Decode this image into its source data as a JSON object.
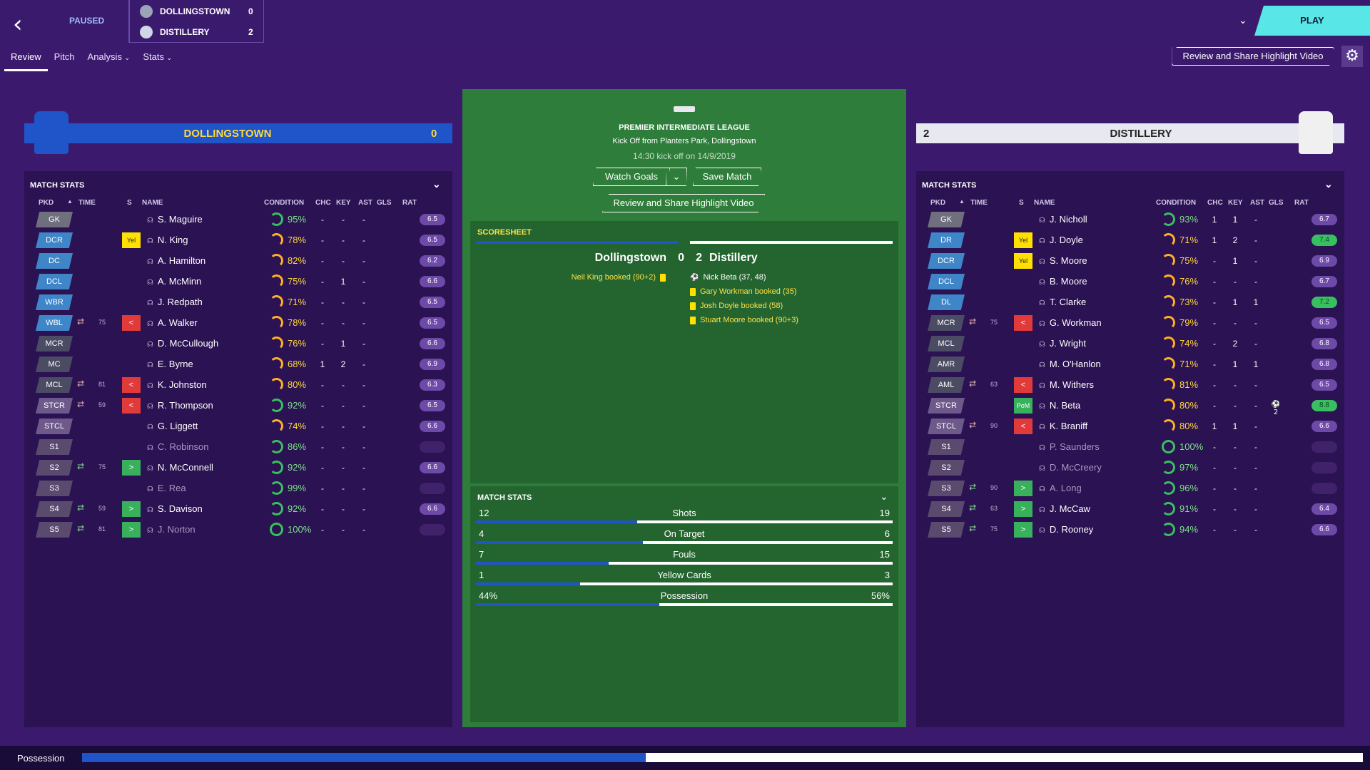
{
  "header": {
    "back_icon": "back-arrow-icon",
    "status": "PAUSED",
    "home_team": "DOLLINGSTOWN",
    "home_score": "0",
    "away_team": "DISTILLERY",
    "away_score": "2"
  },
  "tabs": [
    {
      "label": "Review"
    },
    {
      "label": "Pitch"
    },
    {
      "label": "Analysis"
    },
    {
      "label": "Stats"
    }
  ],
  "play_label": "PLAY",
  "share_label": "Review and Share Highlight Video",
  "home": {
    "name": "DOLLINGSTOWN",
    "score": "0",
    "stats_title": "MATCH STATS",
    "columns": [
      "PKD",
      "TIME",
      "S",
      "NAME",
      "CONDITION",
      "CHC",
      "KEY",
      "AST",
      "GLS",
      "RAT"
    ],
    "players": [
      {
        "pos": "GK",
        "name": "S. Maguire",
        "cond": "95%",
        "chc": "-",
        "key": "-",
        "ast": "-",
        "gls": "",
        "rat": "6.5"
      },
      {
        "pos": "DCR",
        "name": "N. King",
        "cond": "78%",
        "chc": "-",
        "key": "-",
        "ast": "-",
        "gls": "",
        "rat": "6.5",
        "s": "Yel"
      },
      {
        "pos": "DC",
        "name": "A. Hamilton",
        "cond": "82%",
        "chc": "-",
        "key": "-",
        "ast": "-",
        "gls": "",
        "rat": "6.2"
      },
      {
        "pos": "DCL",
        "name": "A. McMinn",
        "cond": "75%",
        "chc": "-",
        "key": "1",
        "ast": "-",
        "gls": "",
        "rat": "6.6"
      },
      {
        "pos": "WBR",
        "name": "J. Redpath",
        "cond": "71%",
        "chc": "-",
        "key": "-",
        "ast": "-",
        "gls": "",
        "rat": "6.5"
      },
      {
        "pos": "WBL",
        "name": "A. Walker",
        "cond": "78%",
        "chc": "-",
        "key": "-",
        "ast": "-",
        "gls": "",
        "rat": "6.5",
        "time": "75",
        "s": "<"
      },
      {
        "pos": "MCR",
        "name": "D. McCullough",
        "cond": "76%",
        "chc": "-",
        "key": "1",
        "ast": "-",
        "gls": "",
        "rat": "6.6"
      },
      {
        "pos": "MC",
        "name": "E. Byrne",
        "cond": "68%",
        "chc": "1",
        "key": "2",
        "ast": "-",
        "gls": "",
        "rat": "6.9"
      },
      {
        "pos": "MCL",
        "name": "K. Johnston",
        "cond": "80%",
        "chc": "-",
        "key": "-",
        "ast": "-",
        "gls": "",
        "rat": "6.3",
        "time": "81",
        "s": "<"
      },
      {
        "pos": "STCR",
        "name": "R. Thompson",
        "cond": "92%",
        "chc": "-",
        "key": "-",
        "ast": "-",
        "gls": "",
        "rat": "6.5",
        "time": "59",
        "s": "<"
      },
      {
        "pos": "STCL",
        "name": "G. Liggett",
        "cond": "74%",
        "chc": "-",
        "key": "-",
        "ast": "-",
        "gls": "",
        "rat": "6.6"
      },
      {
        "pos": "S1",
        "name": "C. Robinson",
        "cond": "86%",
        "chc": "-",
        "key": "-",
        "ast": "-",
        "gls": "",
        "rat": ""
      },
      {
        "pos": "S2",
        "name": "N. McConnell",
        "cond": "92%",
        "chc": "-",
        "key": "-",
        "ast": "-",
        "gls": "",
        "rat": "6.6",
        "time": "75",
        "s": ">"
      },
      {
        "pos": "S3",
        "name": "E. Rea",
        "cond": "99%",
        "chc": "-",
        "key": "-",
        "ast": "-",
        "gls": "",
        "rat": ""
      },
      {
        "pos": "S4",
        "name": "S. Davison",
        "cond": "92%",
        "chc": "-",
        "key": "-",
        "ast": "-",
        "gls": "",
        "rat": "6.6",
        "time": "59",
        "s": ">"
      },
      {
        "pos": "S5",
        "name": "J. Norton",
        "cond": "100%",
        "chc": "-",
        "key": "-",
        "ast": "-",
        "gls": "",
        "rat": "",
        "time": "81",
        "s": ">"
      }
    ]
  },
  "away": {
    "name": "DISTILLERY",
    "score": "2",
    "stats_title": "MATCH STATS",
    "columns": [
      "PKD",
      "TIME",
      "S",
      "NAME",
      "CONDITION",
      "CHC",
      "KEY",
      "AST",
      "GLS",
      "RAT"
    ],
    "players": [
      {
        "pos": "GK",
        "name": "J. Nicholl",
        "cond": "93%",
        "chc": "1",
        "key": "1",
        "ast": "-",
        "gls": "",
        "rat": "6.7"
      },
      {
        "pos": "DR",
        "name": "J. Doyle",
        "cond": "71%",
        "chc": "1",
        "key": "2",
        "ast": "-",
        "gls": "",
        "rat": "7.4",
        "s": "Yel"
      },
      {
        "pos": "DCR",
        "name": "S. Moore",
        "cond": "75%",
        "chc": "-",
        "key": "1",
        "ast": "-",
        "gls": "",
        "rat": "6.9",
        "s": "Yel"
      },
      {
        "pos": "DCL",
        "name": "B. Moore",
        "cond": "76%",
        "chc": "-",
        "key": "-",
        "ast": "-",
        "gls": "",
        "rat": "6.7"
      },
      {
        "pos": "DL",
        "name": "T. Clarke",
        "cond": "73%",
        "chc": "-",
        "key": "1",
        "ast": "1",
        "gls": "",
        "rat": "7.2"
      },
      {
        "pos": "MCR",
        "name": "G. Workman",
        "cond": "79%",
        "chc": "-",
        "key": "-",
        "ast": "-",
        "gls": "",
        "rat": "6.5",
        "time": "75",
        "s": "<"
      },
      {
        "pos": "MCL",
        "name": "J. Wright",
        "cond": "74%",
        "chc": "-",
        "key": "2",
        "ast": "-",
        "gls": "",
        "rat": "6.8"
      },
      {
        "pos": "AMR",
        "name": "M. O'Hanlon",
        "cond": "71%",
        "chc": "-",
        "key": "1",
        "ast": "1",
        "gls": "",
        "rat": "6.8"
      },
      {
        "pos": "AML",
        "name": "M. Withers",
        "cond": "81%",
        "chc": "-",
        "key": "-",
        "ast": "-",
        "gls": "",
        "rat": "6.5",
        "time": "63",
        "s": "<"
      },
      {
        "pos": "STCR",
        "name": "N. Beta",
        "cond": "80%",
        "chc": "-",
        "key": "-",
        "ast": "-",
        "gls": "2",
        "rat": "8.8",
        "s": "PoM"
      },
      {
        "pos": "STCL",
        "name": "K. Braniff",
        "cond": "80%",
        "chc": "1",
        "key": "1",
        "ast": "-",
        "gls": "",
        "rat": "6.6",
        "time": "90",
        "s": "<"
      },
      {
        "pos": "S1",
        "name": "P. Saunders",
        "cond": "100%",
        "chc": "-",
        "key": "-",
        "ast": "-",
        "gls": "",
        "rat": ""
      },
      {
        "pos": "S2",
        "name": "D. McCreery",
        "cond": "97%",
        "chc": "-",
        "key": "-",
        "ast": "-",
        "gls": "",
        "rat": ""
      },
      {
        "pos": "S3",
        "name": "A. Long",
        "cond": "96%",
        "chc": "-",
        "key": "-",
        "ast": "-",
        "gls": "",
        "rat": "",
        "time": "90",
        "s": ">"
      },
      {
        "pos": "S4",
        "name": "J. McCaw",
        "cond": "91%",
        "chc": "-",
        "key": "-",
        "ast": "-",
        "gls": "",
        "rat": "6.4",
        "time": "63",
        "s": ">"
      },
      {
        "pos": "S5",
        "name": "D. Rooney",
        "cond": "94%",
        "chc": "-",
        "key": "-",
        "ast": "-",
        "gls": "",
        "rat": "6.6",
        "time": "75",
        "s": ">"
      }
    ]
  },
  "match": {
    "league": "PREMIER INTERMEDIATE LEAGUE",
    "venue": "Kick Off from Planters Park, Dollingstown",
    "kickoff": "14:30 kick off on 14/9/2019",
    "watch_goals": "Watch Goals",
    "save_match": "Save Match",
    "share": "Review and Share Highlight Video"
  },
  "scoresheet": {
    "title": "SCORESHEET",
    "home": "Dollingstown",
    "home_score": "0",
    "away_score": "2",
    "away": "Distillery",
    "home_events": [
      "Neil King booked (90+2)"
    ],
    "away_events": [
      "Nick Beta (37, 48)",
      "Gary Workman booked (35)",
      "Josh Doyle booked (58)",
      "Stuart Moore booked (90+3)"
    ]
  },
  "match_stats": {
    "title": "MATCH STATS",
    "rows": [
      {
        "label": "Shots",
        "home": "12",
        "away": "19",
        "home_val": 12,
        "away_val": 19
      },
      {
        "label": "On Target",
        "home": "4",
        "away": "6",
        "home_val": 4,
        "away_val": 6
      },
      {
        "label": "Fouls",
        "home": "7",
        "away": "15",
        "home_val": 7,
        "away_val": 15
      },
      {
        "label": "Yellow Cards",
        "home": "1",
        "away": "3",
        "home_val": 1,
        "away_val": 3
      },
      {
        "label": "Possession",
        "home": "44%",
        "away": "56%",
        "home_val": 44,
        "away_val": 56
      }
    ]
  },
  "possession": {
    "label": "Possession",
    "home_pct": 44,
    "away_pct": 56
  },
  "colors": {
    "home": "#1f55c8",
    "away": "#ffffff",
    "accent": "#58e6e6"
  }
}
